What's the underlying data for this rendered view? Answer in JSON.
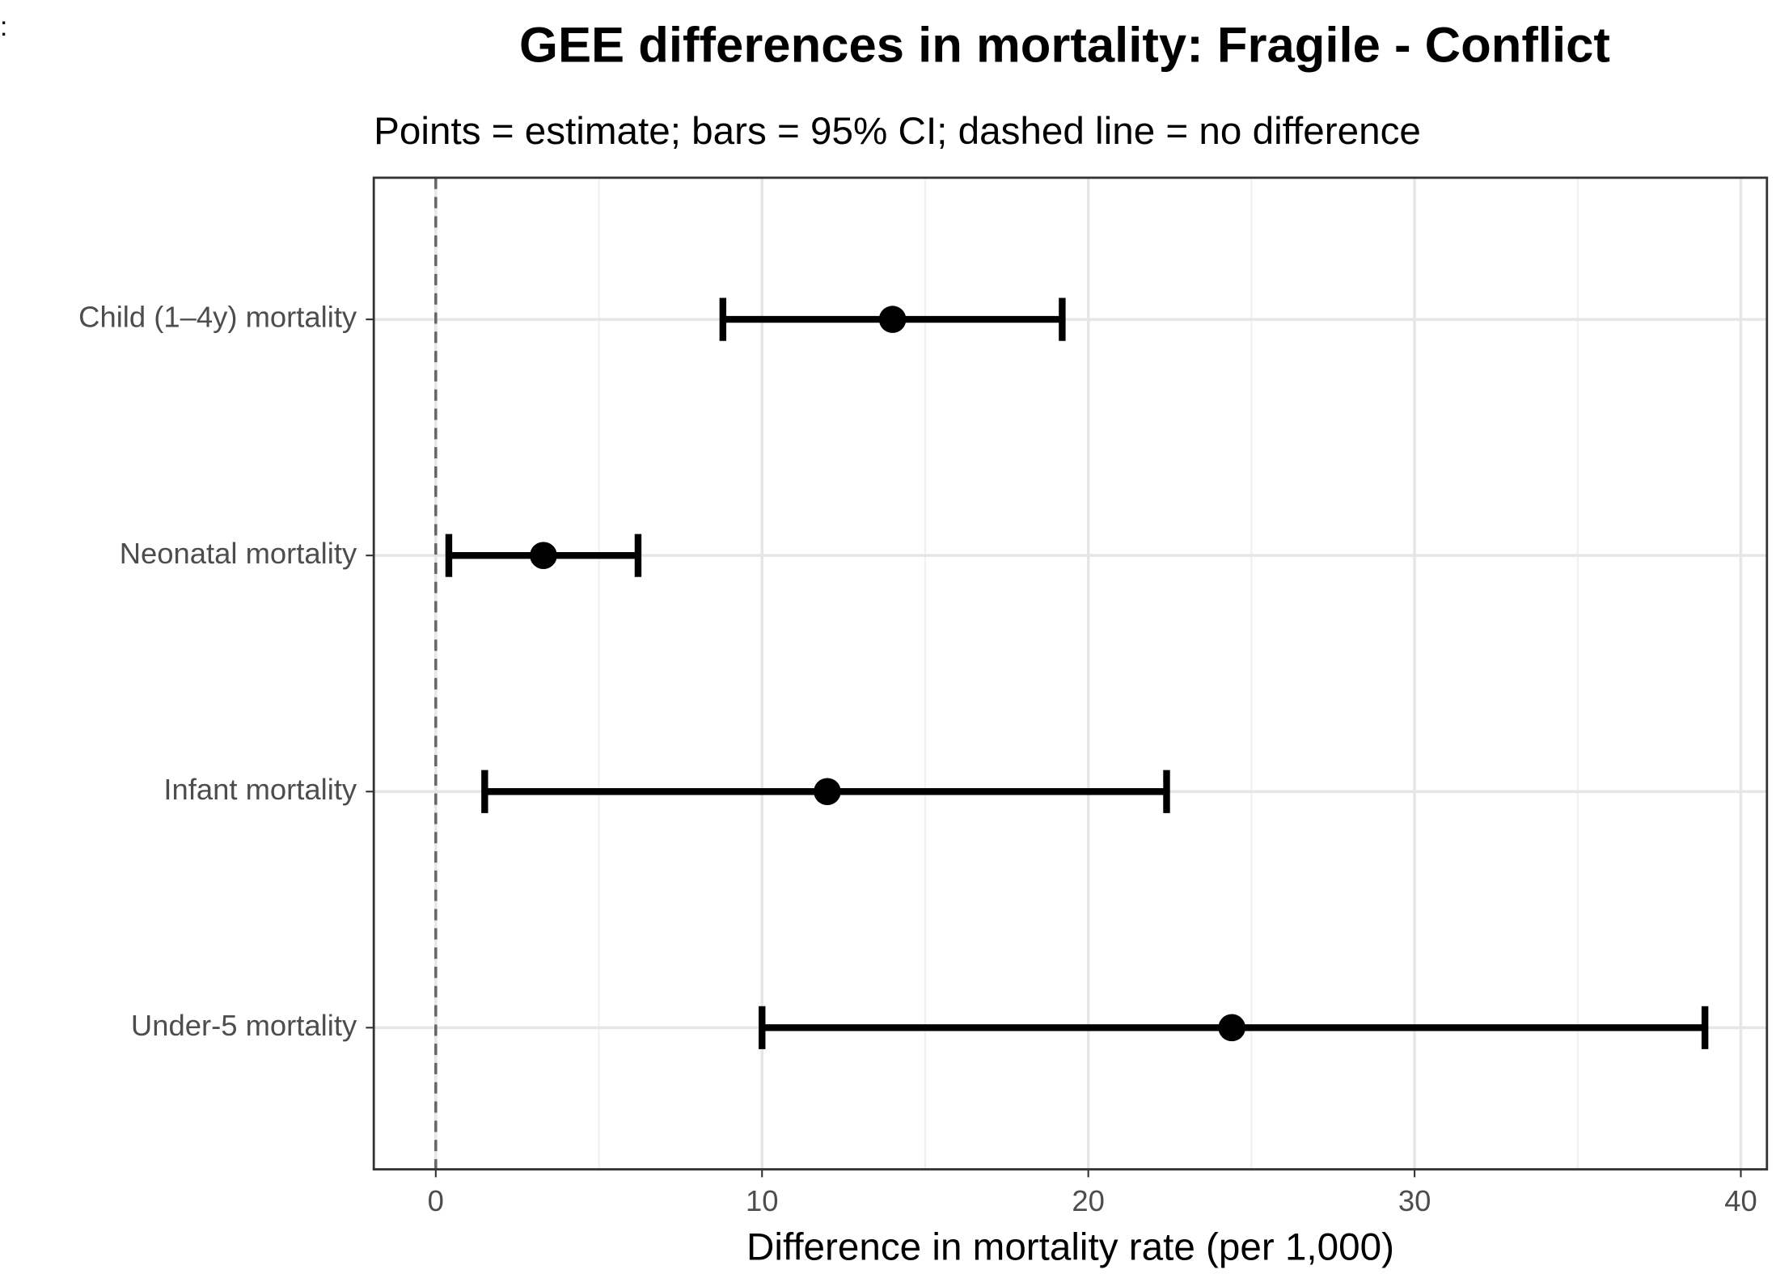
{
  "chart_data": {
    "type": "pointrange",
    "corner_text": ":",
    "title": "GEE differences in mortality: Fragile - Conflict",
    "subtitle": "Points = estimate; bars = 95% CI; dashed line = no difference",
    "x_label": "Difference in mortality rate (per 1,000)",
    "categories": [
      "Child (1–4y) mortality",
      "Neonatal mortality",
      "Infant mortality",
      "Under-5 mortality"
    ],
    "values": [
      14.0,
      3.3,
      12.0,
      24.4
    ],
    "lower": [
      8.8,
      0.4,
      1.5,
      10.0
    ],
    "upper": [
      19.2,
      6.2,
      22.4,
      38.9
    ],
    "color": "#000000",
    "xlim": [
      -1.9,
      40.8
    ],
    "xticks": [
      0,
      10,
      20,
      30,
      40
    ],
    "xminor": [
      5,
      15,
      25,
      35
    ],
    "reference_line": 0,
    "grid": true
  }
}
